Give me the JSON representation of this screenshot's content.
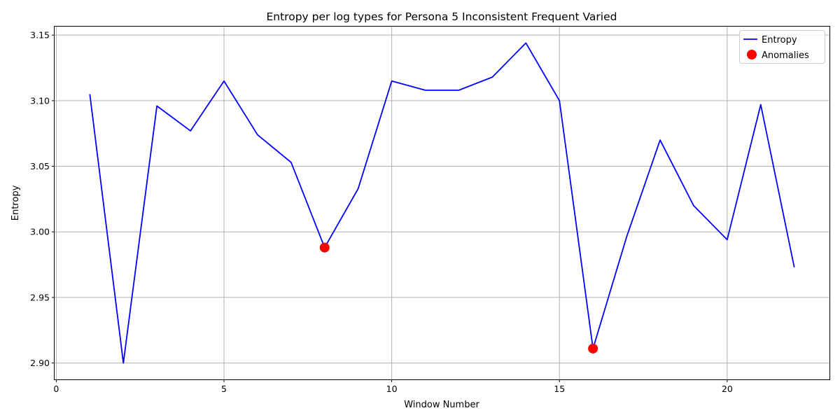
{
  "chart_data": {
    "type": "line",
    "title": "Entropy per log types for Persona 5 Inconsistent Frequent Varied",
    "xlabel": "Window Number",
    "ylabel": "Entropy",
    "xlim": [
      -0.05,
      23.05
    ],
    "ylim": [
      2.8875,
      3.1565
    ],
    "xticks": [
      0,
      5,
      10,
      15,
      20
    ],
    "xtick_labels": [
      "0",
      "5",
      "10",
      "15",
      "20"
    ],
    "yticks": [
      2.9,
      2.95,
      3.0,
      3.05,
      3.1,
      3.15
    ],
    "ytick_labels": [
      "2.90",
      "2.95",
      "3.00",
      "3.05",
      "3.10",
      "3.15"
    ],
    "grid": true,
    "legend_position": "top-right",
    "series": [
      {
        "name": "Entropy",
        "kind": "line",
        "color": "#0000ff",
        "x": [
          1,
          2,
          3,
          4,
          5,
          6,
          7,
          8,
          9,
          10,
          11,
          12,
          13,
          14,
          15,
          16,
          17,
          18,
          19,
          20,
          21,
          22
        ],
        "y": [
          3.105,
          2.9,
          3.096,
          3.077,
          3.115,
          3.074,
          3.053,
          2.988,
          3.033,
          3.115,
          3.108,
          3.108,
          3.118,
          3.144,
          3.1,
          2.911,
          2.996,
          3.07,
          3.02,
          2.994,
          3.097,
          2.973
        ]
      },
      {
        "name": "Anomalies",
        "kind": "scatter",
        "color": "#ff0000",
        "x": [
          8,
          16
        ],
        "y": [
          2.988,
          2.911
        ]
      }
    ]
  }
}
